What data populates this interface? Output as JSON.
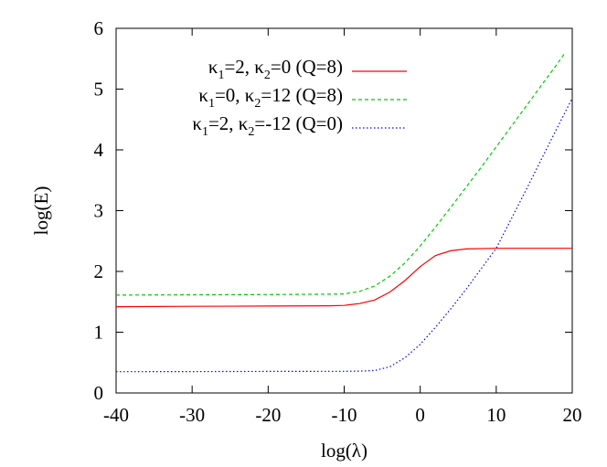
{
  "chart_data": {
    "type": "line",
    "title": "",
    "xlabel": "log(λ)",
    "ylabel": "log(E)",
    "xlim": [
      -40,
      20
    ],
    "ylim": [
      0,
      6
    ],
    "xticks": [
      -40,
      -30,
      -20,
      -10,
      0,
      10,
      20
    ],
    "yticks": [
      0,
      1,
      2,
      3,
      4,
      5,
      6
    ],
    "grid": false,
    "legend_position": "top-left",
    "series": [
      {
        "name": "κ1=2, κ2=0 (Q=8)",
        "legend": {
          "k1": "2",
          "k2": "0",
          "q": "8"
        },
        "color": "#ff0000",
        "dash": "solid",
        "x": [
          -40,
          -30,
          -20,
          -12,
          -10,
          -8,
          -6,
          -4,
          -2,
          0,
          2,
          4,
          6,
          10,
          15,
          20
        ],
        "y": [
          1.42,
          1.425,
          1.43,
          1.435,
          1.44,
          1.47,
          1.53,
          1.66,
          1.85,
          2.08,
          2.26,
          2.34,
          2.37,
          2.38,
          2.38,
          2.38
        ]
      },
      {
        "name": "κ1=0, κ2=12 (Q=8)",
        "legend": {
          "k1": "0",
          "k2": "12",
          "q": "8"
        },
        "color": "#00cc00",
        "dash": "dashed",
        "x": [
          -40,
          -30,
          -20,
          -12,
          -10,
          -8,
          -6,
          -4,
          -2,
          0,
          2,
          4,
          6,
          8,
          10,
          12,
          14,
          16,
          18,
          19
        ],
        "y": [
          1.61,
          1.615,
          1.62,
          1.625,
          1.63,
          1.67,
          1.76,
          1.92,
          2.14,
          2.42,
          2.73,
          3.05,
          3.38,
          3.71,
          4.05,
          4.39,
          4.73,
          5.07,
          5.41,
          5.59
        ]
      },
      {
        "name": "κ1=2, κ2=-12 (Q=0)",
        "legend": {
          "k1": "2",
          "k2": "-12",
          "q": "0"
        },
        "color": "#0000ff",
        "dash": "dotted",
        "x": [
          -40,
          -30,
          -20,
          -10,
          -8,
          -6,
          -4,
          -2,
          0,
          2,
          4,
          6,
          8,
          10,
          12,
          14,
          16,
          18,
          20
        ],
        "y": [
          0.35,
          0.352,
          0.355,
          0.357,
          0.36,
          0.37,
          0.43,
          0.58,
          0.8,
          1.08,
          1.38,
          1.7,
          2.04,
          2.38,
          2.87,
          3.36,
          3.86,
          4.36,
          4.85
        ]
      }
    ]
  }
}
